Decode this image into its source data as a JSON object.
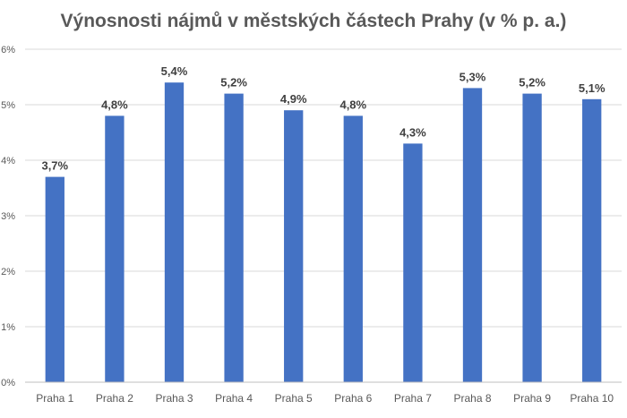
{
  "chart_data": {
    "type": "bar",
    "title": "Výnosnosti nájmů v městských částech Prahy (v % p. a.)",
    "xlabel": "",
    "ylabel": "",
    "categories": [
      "Praha 1",
      "Praha 2",
      "Praha 3",
      "Praha 4",
      "Praha 5",
      "Praha 6",
      "Praha 7",
      "Praha 8",
      "Praha 9",
      "Praha 10"
    ],
    "values": [
      3.7,
      4.8,
      5.4,
      5.2,
      4.9,
      4.8,
      4.3,
      5.3,
      5.2,
      5.1
    ],
    "data_labels": [
      "3,7%",
      "4,8%",
      "5,4%",
      "5,2%",
      "4,9%",
      "4,8%",
      "4,3%",
      "5,3%",
      "5,2%",
      "5,1%"
    ],
    "ylim": [
      0,
      6
    ],
    "y_ticks": [
      0,
      1,
      2,
      3,
      4,
      5,
      6
    ],
    "y_tick_labels": [
      "0%",
      "1%",
      "2%",
      "3%",
      "4%",
      "5%",
      "6%"
    ],
    "grid": true,
    "legend": "none",
    "bar_color": "#4472c4"
  }
}
